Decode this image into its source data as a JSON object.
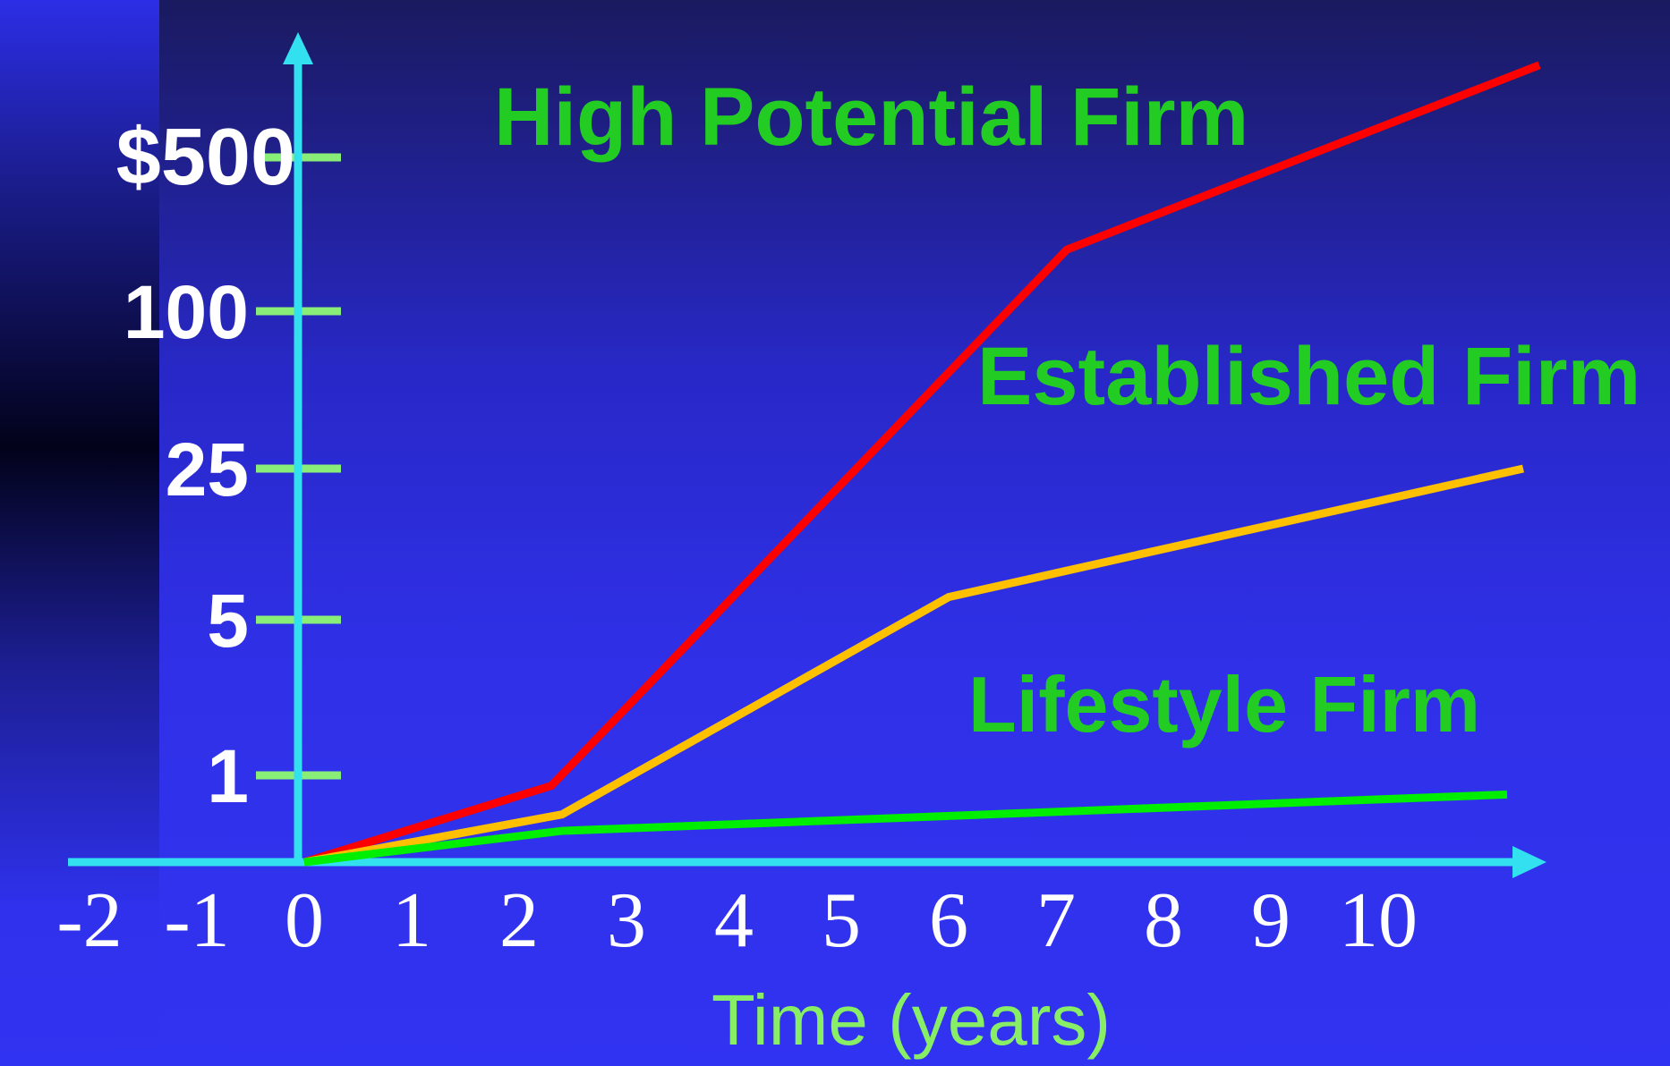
{
  "colors": {
    "bg_main": "#2f2fe8",
    "bg_top": "#1b1b6e",
    "axis": "#33e0f0",
    "tick": "#88ee77",
    "ytext": "#ffffff",
    "xtext": "#ffffff",
    "xlabel": "#88ee66",
    "series_label": "#22cc22"
  },
  "chart_data": {
    "type": "line",
    "title": "",
    "xlabel": "Time (years)",
    "ylabel": "",
    "x_ticks": [
      "-2",
      "-1",
      "0",
      "1",
      "2",
      "3",
      "4",
      "5",
      "6",
      "7",
      "8",
      "9",
      "10"
    ],
    "y_ticks": [
      "1",
      "5",
      "25",
      "100",
      "$500"
    ],
    "xlim": [
      -2.3,
      11.6
    ],
    "y_scale": "ordinal (1, 5, 25, 100, $500)",
    "series": [
      {
        "name": "High Potential Firm",
        "color": "#ff0000",
        "points": [
          [
            0,
            0
          ],
          [
            2.3,
            0.88
          ],
          [
            7.1,
            4.4
          ],
          [
            11.5,
            5.6
          ]
        ]
      },
      {
        "name": "Established Firm",
        "color": "#ffc000",
        "points": [
          [
            0,
            0
          ],
          [
            2.4,
            0.55
          ],
          [
            6,
            2.15
          ],
          [
            11.35,
            3.0
          ]
        ]
      },
      {
        "name": "Lifestyle Firm",
        "color": "#00ee00",
        "points": [
          [
            0,
            0
          ],
          [
            2.4,
            0.36
          ],
          [
            11.2,
            0.78
          ]
        ]
      }
    ],
    "grid": false,
    "legend": "labels placed near lines"
  }
}
